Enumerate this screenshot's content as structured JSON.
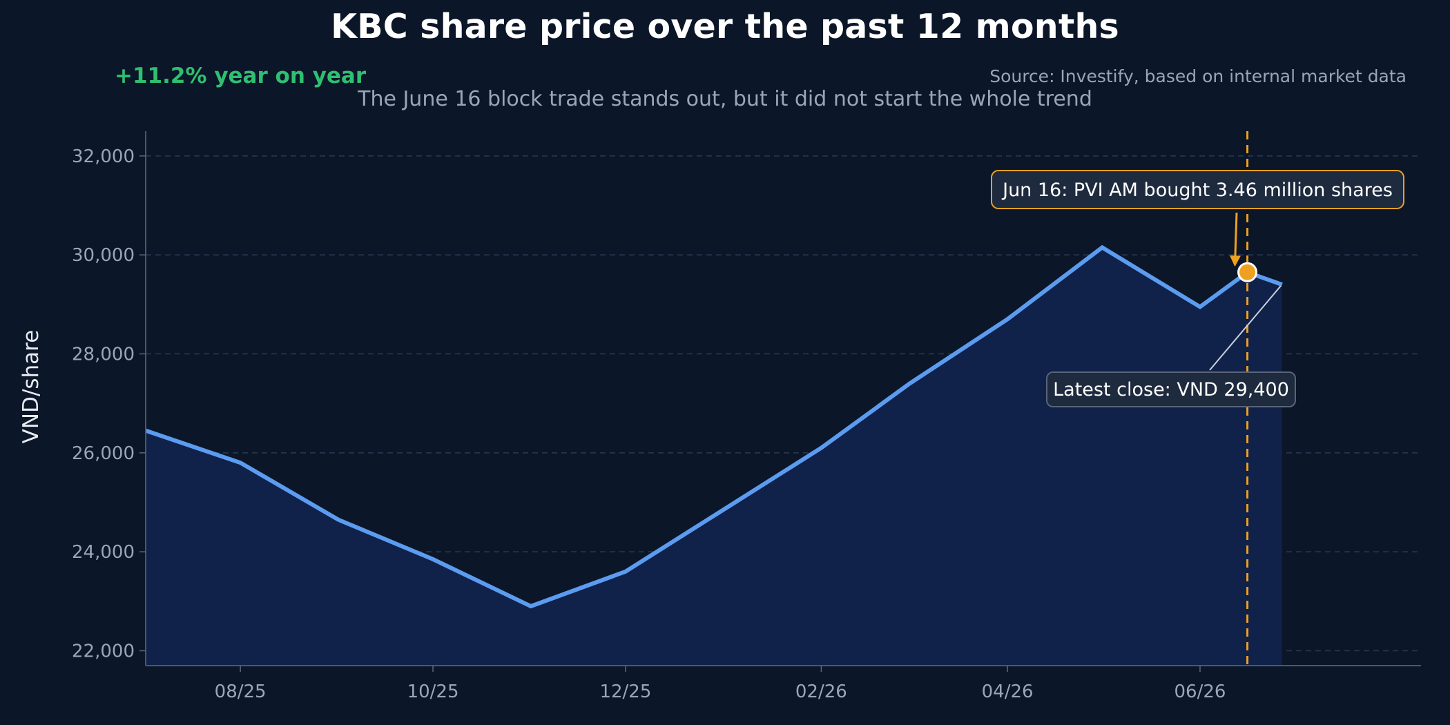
{
  "header": {
    "title": "KBC share price over the past 12 months",
    "yoy_change": "+11.2% year on year",
    "source": "Source: Investify, based on internal market data",
    "subtitle": "The June 16 block trade stands out, but it did not start the whole trend"
  },
  "colors": {
    "background": "#0b1628",
    "line": "#5b9cf0",
    "area": "#10214a",
    "highlight": "#f0a020",
    "positive": "#2fbf71",
    "muted_text": "#9aa6b8"
  },
  "chart_data": {
    "type": "area",
    "ylabel": "VND/share",
    "xlabel": "",
    "ylim": [
      21700,
      32500
    ],
    "yticks": [
      22000,
      24000,
      26000,
      28000,
      30000,
      32000
    ],
    "x_tick_labels": [
      {
        "label": "08/25",
        "date": "2025-08-01"
      },
      {
        "label": "10/25",
        "date": "2025-10-01"
      },
      {
        "label": "12/25",
        "date": "2025-12-01"
      },
      {
        "label": "02/26",
        "date": "2026-02-01"
      },
      {
        "label": "04/26",
        "date": "2026-04-01"
      },
      {
        "label": "06/26",
        "date": "2026-06-01"
      }
    ],
    "xlim": [
      "2025-07-02",
      "2026-08-10"
    ],
    "grid": true,
    "series": [
      {
        "points": [
          {
            "x": "2025-07-02",
            "y": 26450
          },
          {
            "x": "2025-08-01",
            "y": 25800
          },
          {
            "x": "2025-09-01",
            "y": 24650
          },
          {
            "x": "2025-10-01",
            "y": 23850
          },
          {
            "x": "2025-11-01",
            "y": 22900
          },
          {
            "x": "2025-12-01",
            "y": 23600
          },
          {
            "x": "2026-01-01",
            "y": 24850
          },
          {
            "x": "2026-02-01",
            "y": 26100
          },
          {
            "x": "2026-03-01",
            "y": 27400
          },
          {
            "x": "2026-04-01",
            "y": 28700
          },
          {
            "x": "2026-05-01",
            "y": 30150
          },
          {
            "x": "2026-06-01",
            "y": 28950
          },
          {
            "x": "2026-06-16",
            "y": 29650
          },
          {
            "x": "2026-06-27",
            "y": 29400
          }
        ]
      }
    ],
    "event": {
      "date": "2026-06-16",
      "value": 29650,
      "label": "Jun 16: PVI AM bought 3.46 million shares"
    },
    "latest": {
      "date": "2026-06-27",
      "value": 29400,
      "label": "Latest close: VND 29,400"
    }
  }
}
